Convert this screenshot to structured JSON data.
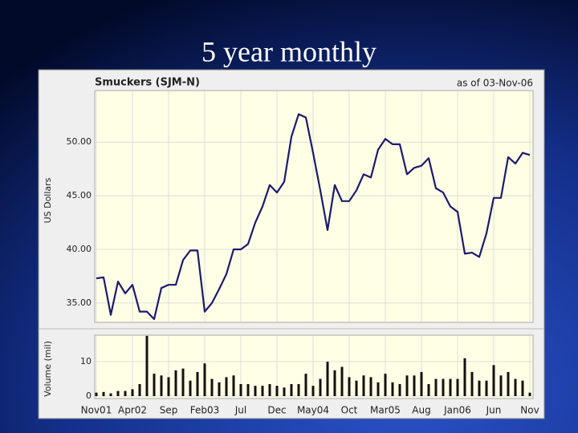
{
  "slide_title": "5 year monthly",
  "chart_data": [
    {
      "type": "line",
      "title": "Smuckers (SJM-N)",
      "subtitle": "as of 03-Nov-06",
      "ylabel": "US Dollars",
      "color": "#1a1a6e",
      "values": [
        37.3,
        37.4,
        33.9,
        37.0,
        35.9,
        36.7,
        34.2,
        34.2,
        33.5,
        36.4,
        36.7,
        36.7,
        39.0,
        39.9,
        39.9,
        34.2,
        35.0,
        36.3,
        37.7,
        40.0,
        40.0,
        40.5,
        42.5,
        44.0,
        46.0,
        45.3,
        46.3,
        50.5,
        52.6,
        52.3,
        49.0,
        45.5,
        41.8,
        46.0,
        44.5,
        44.5,
        45.5,
        47.0,
        46.7,
        49.3,
        50.3,
        49.8,
        49.8,
        47.0,
        47.6,
        47.8,
        48.5,
        45.7,
        45.3,
        44.0,
        43.5,
        39.6,
        39.7,
        39.3,
        41.5,
        44.8,
        44.8,
        48.6,
        48.0,
        49.0,
        48.8
      ],
      "ylim": [
        33.2,
        54.8
      ],
      "yticks": [
        {
          "value": 35,
          "label": "35.00"
        },
        {
          "value": 40,
          "label": "40.00"
        },
        {
          "value": 45,
          "label": "45.00"
        },
        {
          "value": 50,
          "label": "50.00"
        }
      ],
      "grid": true
    },
    {
      "type": "bar",
      "ylabel": "Volume (mil)",
      "color": "#111111",
      "categories": [
        "Nov01",
        null,
        null,
        null,
        null,
        "Apr02",
        null,
        null,
        null,
        null,
        "Sep",
        null,
        null,
        null,
        null,
        "Feb03",
        null,
        null,
        null,
        null,
        "Jul",
        null,
        null,
        null,
        null,
        "Dec",
        null,
        null,
        null,
        null,
        "May04",
        null,
        null,
        null,
        null,
        "Oct",
        null,
        null,
        null,
        null,
        "Mar05",
        null,
        null,
        null,
        null,
        "Aug",
        null,
        null,
        null,
        null,
        "Jan06",
        null,
        null,
        null,
        null,
        "Jun",
        null,
        null,
        null,
        null,
        "Nov"
      ],
      "values": [
        1,
        1.2,
        0.8,
        1.5,
        1.5,
        2,
        3.5,
        17.5,
        6.5,
        6,
        5.5,
        7.5,
        8,
        4.5,
        7,
        9.5,
        5,
        4,
        5.5,
        6,
        3.5,
        3.5,
        3,
        3,
        3.5,
        3,
        2.5,
        3.5,
        3.5,
        6.5,
        3,
        5,
        10,
        7.5,
        8.5,
        5.5,
        4.5,
        6,
        5.5,
        4,
        6.5,
        4,
        3.5,
        6,
        6,
        7,
        3.5,
        5,
        5,
        5,
        5,
        11,
        7,
        4.5,
        4.5,
        9,
        6,
        7,
        5,
        4.5,
        1
      ],
      "ylim": [
        -0.7,
        17.7
      ],
      "yticks": [
        0,
        10
      ],
      "grid": true
    }
  ]
}
